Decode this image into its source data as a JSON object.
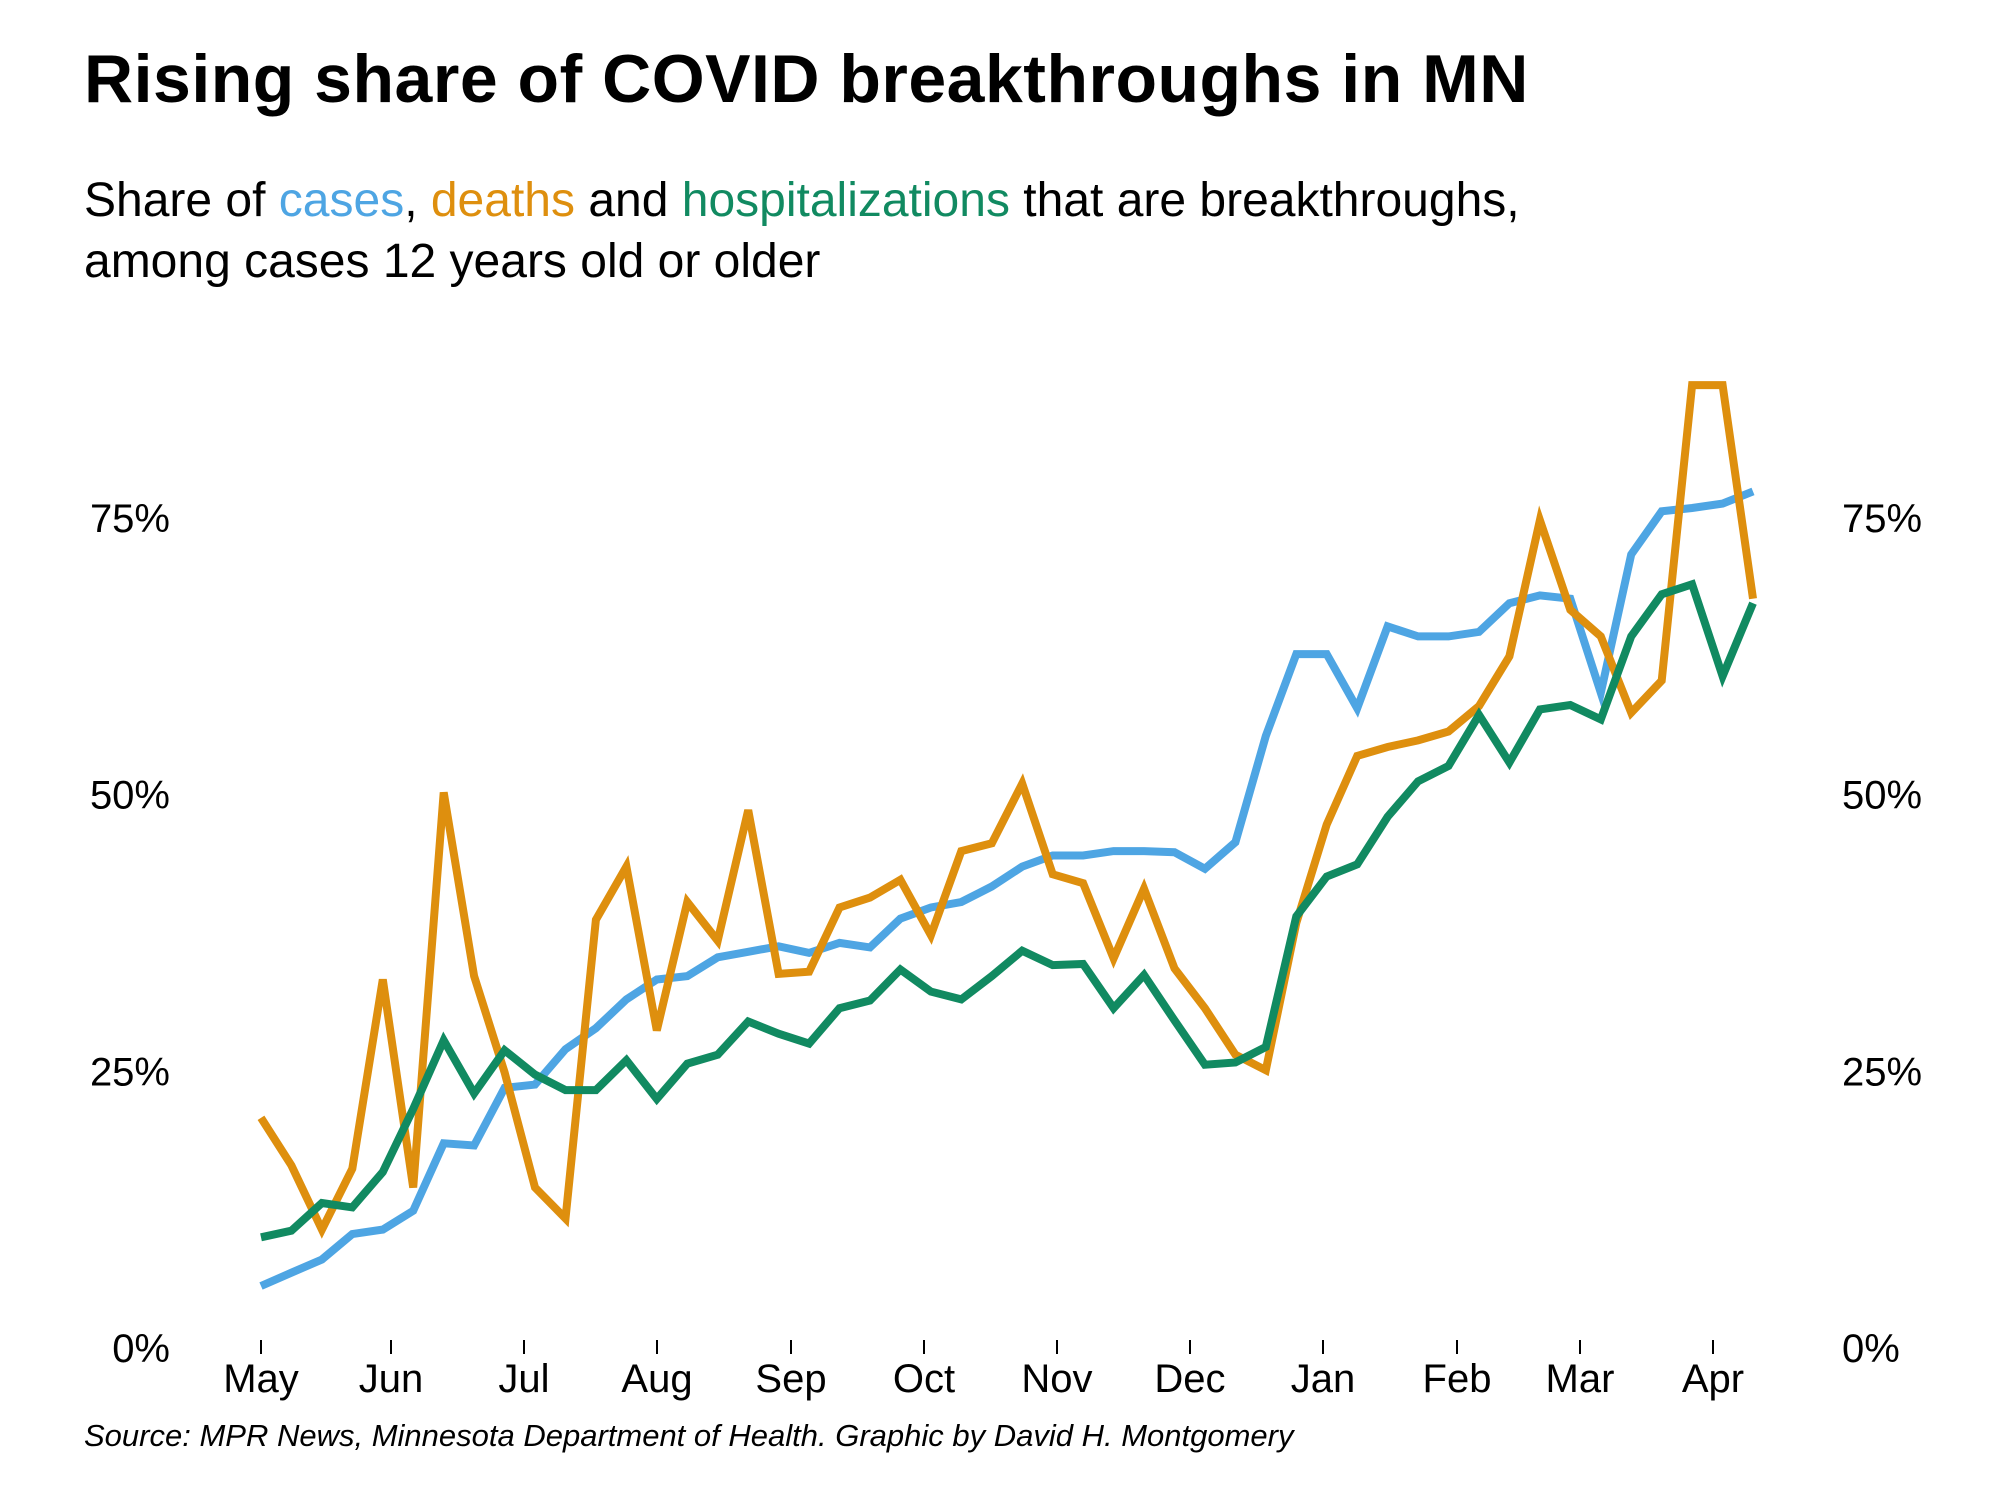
{
  "header": {
    "title": "Rising share of COVID breakthroughs in MN",
    "subtitle_part1": "Share of ",
    "subtitle_cases": "cases",
    "subtitle_part2": ", ",
    "subtitle_deaths": "deaths",
    "subtitle_part3": " and ",
    "subtitle_hosp": "hospitalizations",
    "subtitle_part4": " that are breakthroughs,",
    "subtitle_line2": "among cases 12 years old or older"
  },
  "source": "Source: MPR News, Minnesota Department of Health. Graphic by David H. Montgomery",
  "colors": {
    "cases": "#4ea5e3",
    "deaths": "#de8f0e",
    "hospitalizations": "#118a61"
  },
  "chart_data": {
    "type": "line",
    "x_labels": [
      "May",
      "Jun",
      "Jul",
      "Aug",
      "Sep",
      "Oct",
      "Nov",
      "Dec",
      "Jan",
      "Feb",
      "Mar",
      "Apr"
    ],
    "y_ticks": [
      0,
      25,
      50,
      75
    ],
    "y_tick_labels": [
      "0%",
      "25%",
      "50%",
      "75%"
    ],
    "ylim": [
      0,
      89
    ],
    "x_unit": "weeks since May start",
    "grid": false,
    "series": [
      {
        "name": "cases",
        "color": "#4ea5e3",
        "values": [
          5.6,
          6.8,
          8.0,
          10.3,
          10.7,
          12.4,
          18.5,
          18.3,
          23.5,
          23.8,
          27.0,
          28.9,
          31.5,
          33.3,
          33.6,
          35.3,
          35.8,
          36.3,
          35.7,
          36.6,
          36.2,
          38.8,
          39.8,
          40.3,
          41.7,
          43.5,
          44.5,
          44.5,
          44.9,
          44.9,
          44.8,
          43.3,
          45.7,
          55.3,
          62.7,
          62.7,
          57.8,
          65.2,
          64.3,
          64.3,
          64.7,
          67.3,
          68.0,
          67.7,
          59.2,
          71.7,
          75.6,
          75.9,
          76.3,
          77.4
        ]
      },
      {
        "name": "deaths",
        "color": "#de8f0e",
        "values": [
          20.8,
          16.5,
          10.7,
          16.2,
          33.3,
          14.5,
          50.2,
          33.6,
          24.9,
          14.5,
          11.7,
          38.7,
          43.5,
          28.7,
          40.3,
          36.8,
          48.6,
          33.8,
          34.0,
          39.8,
          40.7,
          42.3,
          37.3,
          44.9,
          45.6,
          51.0,
          42.8,
          42.0,
          35.2,
          41.5,
          34.3,
          30.7,
          26.5,
          25.1,
          38.4,
          47.3,
          53.5,
          54.3,
          54.9,
          55.7,
          58.0,
          62.5,
          74.8,
          66.7,
          64.3,
          57.4,
          60.3,
          87.0,
          87.0,
          67.7
        ]
      },
      {
        "name": "hospitalizations",
        "color": "#118a61",
        "values": [
          10.0,
          10.6,
          13.1,
          12.7,
          15.9,
          21.6,
          27.8,
          23.0,
          26.9,
          24.7,
          23.3,
          23.3,
          26.0,
          22.5,
          25.7,
          26.5,
          29.5,
          28.4,
          27.5,
          30.7,
          31.4,
          34.2,
          32.2,
          31.5,
          33.6,
          35.9,
          34.6,
          34.7,
          30.7,
          33.7,
          29.6,
          25.6,
          25.8,
          27.2,
          39.0,
          42.6,
          43.7,
          48.0,
          51.2,
          52.6,
          57.2,
          52.9,
          57.7,
          58.1,
          56.8,
          64.3,
          68.1,
          69.0,
          60.7,
          67.3
        ]
      }
    ]
  }
}
